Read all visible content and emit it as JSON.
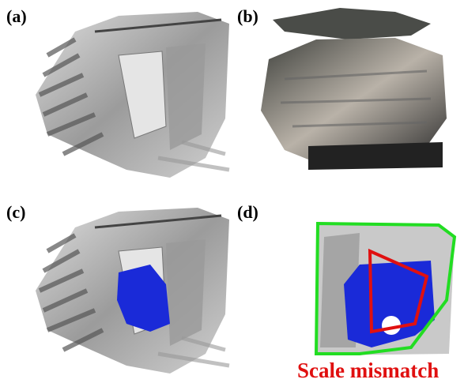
{
  "panels": [
    {
      "label": "(a)"
    },
    {
      "label": "(b)"
    },
    {
      "label": "(c)"
    },
    {
      "label": "(d)"
    }
  ],
  "annotation": "Scale mismatch"
}
